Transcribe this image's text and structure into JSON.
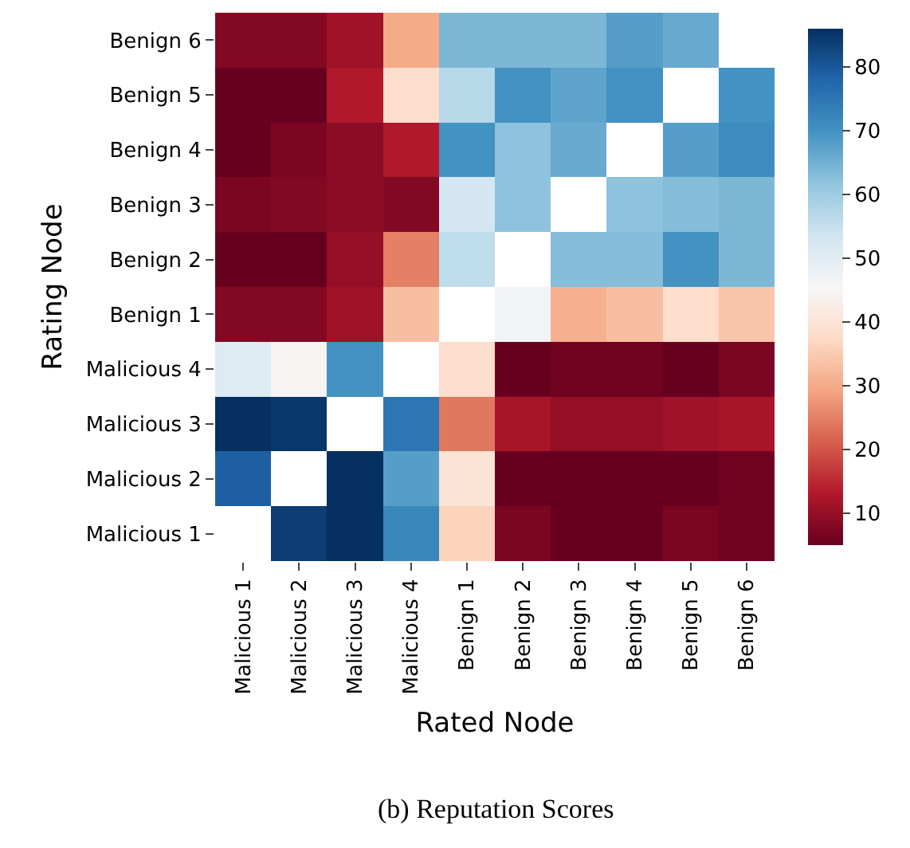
{
  "chart_data": {
    "type": "heatmap",
    "xlabel": "Rated Node",
    "ylabel": "Rating Node",
    "categories": [
      "Malicious 1",
      "Malicious 2",
      "Malicious 3",
      "Malicious 4",
      "Benign 1",
      "Benign 2",
      "Benign 3",
      "Benign 4",
      "Benign 5",
      "Benign 6"
    ],
    "y_categories": [
      "Benign 6",
      "Benign 5",
      "Benign 4",
      "Benign 3",
      "Benign 2",
      "Benign 1",
      "Malicious 4",
      "Malicious 3",
      "Malicious 2",
      "Malicious 1"
    ],
    "cells": [
      [
        8,
        8,
        11,
        30,
        64,
        64,
        64,
        68,
        66,
        null
      ],
      [
        5,
        5,
        13,
        38,
        57,
        70,
        67,
        70,
        null,
        70
      ],
      [
        5,
        7,
        9,
        13,
        70,
        62,
        66,
        null,
        68,
        71
      ],
      [
        7,
        8,
        9,
        8,
        53,
        62,
        null,
        62,
        63,
        64
      ],
      [
        5,
        5,
        10,
        25,
        56,
        null,
        63,
        63,
        70,
        64
      ],
      [
        8,
        8,
        11,
        33,
        null,
        47,
        31,
        33,
        38,
        34
      ],
      [
        51,
        45,
        70,
        null,
        38,
        5,
        6,
        6,
        5,
        7
      ],
      [
        86,
        85,
        null,
        75,
        24,
        12,
        10,
        10,
        11,
        12
      ],
      [
        79,
        null,
        86,
        68,
        40,
        5,
        5,
        5,
        5,
        6
      ],
      [
        null,
        84,
        86,
        72,
        36,
        7,
        5,
        5,
        7,
        6
      ]
    ],
    "clim": [
      5,
      86
    ],
    "cticks": [
      10,
      20,
      30,
      40,
      50,
      60,
      70,
      80
    ],
    "annotations": [
      "(b) Reputation Scores"
    ]
  }
}
